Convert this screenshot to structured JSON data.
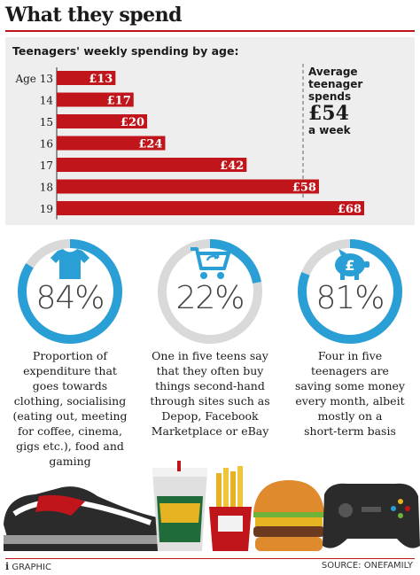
{
  "header": {
    "title": "What they spend"
  },
  "chart_data": {
    "type": "bar",
    "orientation": "horizontal",
    "title": "Teenagers' weekly spending by age:",
    "categories": [
      "Age 13",
      "14",
      "15",
      "16",
      "17",
      "18",
      "19"
    ],
    "values": [
      13,
      17,
      20,
      24,
      42,
      58,
      68
    ],
    "value_labels": [
      "£13",
      "£17",
      "£20",
      "£24",
      "£42",
      "£58",
      "£68"
    ],
    "xlim": [
      0,
      68
    ],
    "bar_color": "#c0161b"
  },
  "average": {
    "line1": "Average",
    "line2": "teenager",
    "line3": "spends",
    "amount": "£54",
    "period": "a week"
  },
  "stats": [
    {
      "percent": "84%",
      "value": 84,
      "icon": "tshirt-icon",
      "caption": [
        "Proportion of",
        "expenditure that",
        "goes towards",
        "clothing, socialising",
        "(eating out, meeting",
        "for coffee, cinema,",
        "gigs etc.), food and",
        "gaming"
      ]
    },
    {
      "percent": "22%",
      "value": 22,
      "icon": "recycle-cart-icon",
      "caption": [
        "One in five teens say",
        "that they often buy",
        "things second-hand",
        "through sites such as",
        "Depop, Facebook",
        "Marketplace or eBay"
      ]
    },
    {
      "percent": "81%",
      "value": 81,
      "icon": "piggy-bank-icon",
      "caption": [
        "Four in five",
        "teenagers are",
        "saving some money",
        "every month, albeit",
        "mostly on a",
        "short-term basis"
      ]
    }
  ],
  "illustration_icons": [
    "sneaker-icon",
    "drink-cup-icon",
    "fries-icon",
    "burger-icon",
    "game-controller-icon"
  ],
  "footer": {
    "brand_mark": "i",
    "brand": "GRAPHIC",
    "source": "SOURCE: ONEFAMILY"
  },
  "colors": {
    "accent": "#c0161b",
    "ring": "#2a9fd6",
    "ring_track": "#d9d9d9",
    "panel": "#eeeeee"
  }
}
